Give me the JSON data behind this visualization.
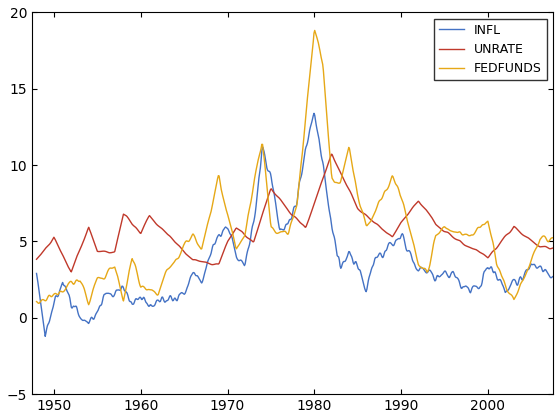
{
  "title": "",
  "series": [
    "INFL",
    "UNRATE",
    "FEDFUNDS"
  ],
  "colors": [
    "#4472C4",
    "#C0392B",
    "#E6A817"
  ],
  "linewidths": [
    1.0,
    1.0,
    1.0
  ],
  "xlim": [
    1947.5,
    2007.5
  ],
  "ylim": [
    -5,
    20
  ],
  "yticks": [
    -5,
    0,
    5,
    10,
    15,
    20
  ],
  "xticks": [
    1950,
    1960,
    1970,
    1980,
    1990,
    2000
  ],
  "legend_loc": "upper right",
  "background_color": "#ffffff"
}
